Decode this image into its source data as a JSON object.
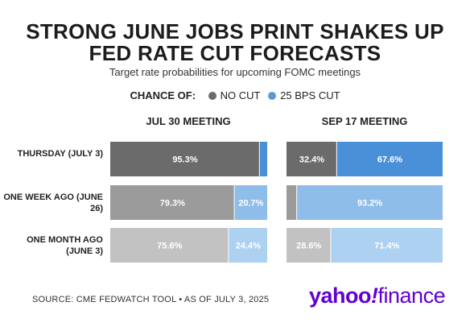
{
  "title_lines": [
    "STRONG JUNE JOBS PRINT SHAKES UP",
    "FED RATE CUT FORECASTS"
  ],
  "subtitle": "Target rate probabilities for upcoming FOMC meetings",
  "legend": {
    "label": "CHANCE OF:",
    "items": [
      {
        "name": "NO CUT",
        "color": "#6b6b6b"
      },
      {
        "name": "25 BPS CUT",
        "color": "#5b9bd5"
      }
    ]
  },
  "source": "SOURCE: CME FEDWATCH TOOL • AS OF JULY 3, 2025",
  "logo": {
    "yahoo": "yahoo",
    "bang": "!",
    "finance": "finance"
  },
  "chart_data": {
    "type": "bar",
    "orientation": "horizontal",
    "stacked": true,
    "categories": [
      "THURSDAY (JULY 3)",
      "ONE WEEK AGO (JUNE 26)",
      "ONE MONTH AGO (JUNE 3)"
    ],
    "panels": [
      {
        "title": "JUL 30 MEETING",
        "series": [
          {
            "name": "NO CUT",
            "values": [
              95.3,
              79.3,
              75.6
            ],
            "labels": [
              "95.3%",
              "79.3%",
              "75.6%"
            ]
          },
          {
            "name": "25 BPS CUT",
            "values": [
              4.7,
              20.7,
              24.4
            ],
            "labels": [
              "",
              "20.7%",
              "24.4%"
            ]
          }
        ]
      },
      {
        "title": "SEP 17 MEETING",
        "series": [
          {
            "name": "NO CUT",
            "values": [
              32.4,
              6.8,
              28.6
            ],
            "labels": [
              "32.4%",
              "",
              "28.6%"
            ]
          },
          {
            "name": "25 BPS CUT",
            "values": [
              67.6,
              93.2,
              71.4
            ],
            "labels": [
              "67.6%",
              "93.2%",
              "71.4%"
            ]
          }
        ]
      }
    ],
    "row_colors": [
      [
        "#6b6b6b",
        "#4a90d9"
      ],
      [
        "#9b9b9b",
        "#8ebde9"
      ],
      [
        "#c2c2c2",
        "#add1f1"
      ]
    ],
    "xlim": [
      0,
      100
    ]
  }
}
